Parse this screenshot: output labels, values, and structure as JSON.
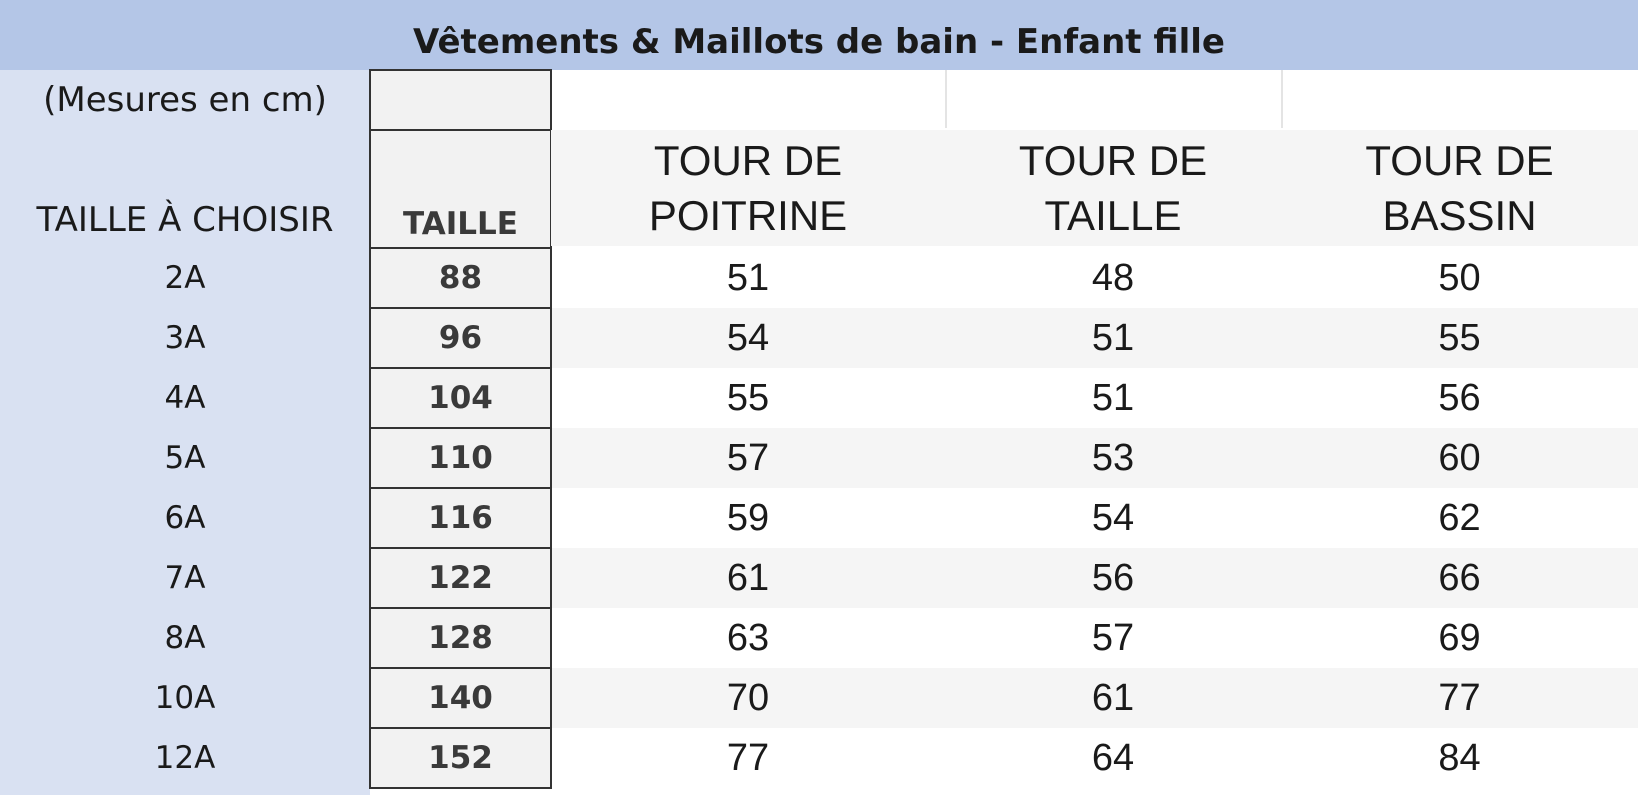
{
  "title": "Vêtements & Maillots de bain - Enfant fille",
  "units_label": "(Mesures en cm)",
  "size_choice_header": "TAILLE À CHOISIR",
  "height_header": "TAILLE",
  "measure_headers": [
    {
      "line1": "TOUR DE",
      "line2": "POITRINE"
    },
    {
      "line1": "TOUR DE",
      "line2": "TAILLE"
    },
    {
      "line1": "TOUR DE",
      "line2": "BASSIN"
    }
  ],
  "rows": [
    {
      "size": "2A",
      "height": "88",
      "chest": "51",
      "waist": "48",
      "hips": "50"
    },
    {
      "size": "3A",
      "height": "96",
      "chest": "54",
      "waist": "51",
      "hips": "55"
    },
    {
      "size": "4A",
      "height": "104",
      "chest": "55",
      "waist": "51",
      "hips": "56"
    },
    {
      "size": "5A",
      "height": "110",
      "chest": "57",
      "waist": "53",
      "hips": "60"
    },
    {
      "size": "6A",
      "height": "116",
      "chest": "59",
      "waist": "54",
      "hips": "62"
    },
    {
      "size": "7A",
      "height": "122",
      "chest": "61",
      "waist": "56",
      "hips": "66"
    },
    {
      "size": "8A",
      "height": "128",
      "chest": "63",
      "waist": "57",
      "hips": "69"
    },
    {
      "size": "10A",
      "height": "140",
      "chest": "70",
      "waist": "61",
      "hips": "77"
    },
    {
      "size": "12A",
      "height": "152",
      "chest": "77",
      "waist": "64",
      "hips": "84"
    }
  ],
  "colors": {
    "title_bg": "#b4c6e7",
    "left_column_bg": "#d9e1f2",
    "height_column_bg": "#f2f2f2",
    "row_band": "#f5f5f5"
  }
}
